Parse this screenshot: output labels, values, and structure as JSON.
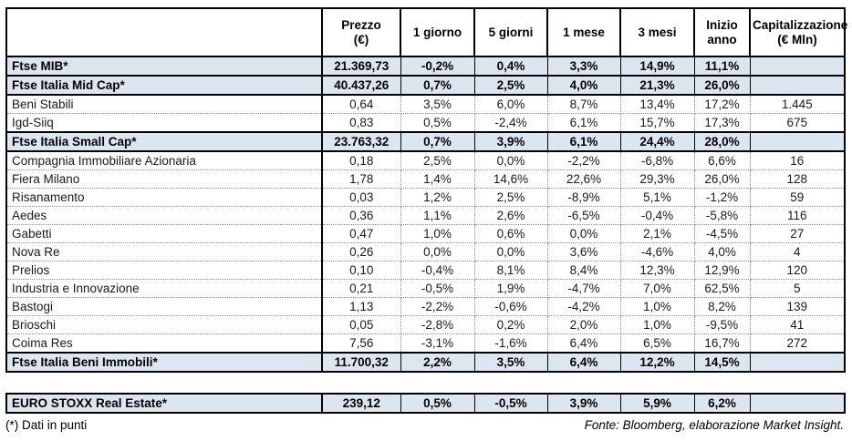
{
  "table": {
    "columns": [
      {
        "label": "Prezzo\n(€)"
      },
      {
        "label": "1 giorno"
      },
      {
        "label": "5 giorni"
      },
      {
        "label": "1 mese"
      },
      {
        "label": "3 mesi"
      },
      {
        "label": "Inizio anno"
      },
      {
        "label": "Capitalizzazione\n(€ Mln)"
      }
    ],
    "rows": [
      {
        "type": "index",
        "name": "Ftse MIB*",
        "values": [
          "21.369,73",
          "-0,2%",
          "0,4%",
          "3,3%",
          "14,9%",
          "11,1%",
          ""
        ]
      },
      {
        "type": "index",
        "name": "Ftse Italia Mid Cap*",
        "values": [
          "40.437,26",
          "0,7%",
          "2,5%",
          "4,0%",
          "21,3%",
          "26,0%",
          ""
        ]
      },
      {
        "type": "stock",
        "name": "Beni Stabili",
        "values": [
          "0,64",
          "3,5%",
          "6,0%",
          "8,7%",
          "13,4%",
          "17,2%",
          "1.445"
        ]
      },
      {
        "type": "stock",
        "name": "Igd-Siiq",
        "values": [
          "0,83",
          "0,5%",
          "-2,4%",
          "6,1%",
          "15,7%",
          "17,3%",
          "675"
        ]
      },
      {
        "type": "index",
        "name": "Ftse Italia Small Cap*",
        "values": [
          "23.763,32",
          "0,7%",
          "3,9%",
          "6,1%",
          "24,4%",
          "28,0%",
          ""
        ]
      },
      {
        "type": "stock",
        "name": "Compagnia Immobiliare Azionaria",
        "values": [
          "0,18",
          "2,5%",
          "0,0%",
          "-2,2%",
          "-6,8%",
          "6,6%",
          "16"
        ]
      },
      {
        "type": "stock",
        "name": "Fiera Milano",
        "values": [
          "1,78",
          "1,4%",
          "14,6%",
          "22,6%",
          "29,3%",
          "26,0%",
          "128"
        ]
      },
      {
        "type": "stock",
        "name": "Risanamento",
        "values": [
          "0,03",
          "1,2%",
          "2,5%",
          "-8,9%",
          "5,1%",
          "-1,2%",
          "59"
        ]
      },
      {
        "type": "stock",
        "name": "Aedes",
        "values": [
          "0,36",
          "1,1%",
          "2,6%",
          "-6,5%",
          "-0,4%",
          "-5,8%",
          "116"
        ]
      },
      {
        "type": "stock",
        "name": "Gabetti",
        "values": [
          "0,47",
          "1,0%",
          "0,6%",
          "0,0%",
          "2,1%",
          "-4,5%",
          "27"
        ]
      },
      {
        "type": "stock",
        "name": "Nova Re",
        "values": [
          "0,26",
          "0,0%",
          "0,0%",
          "3,6%",
          "-4,6%",
          "4,0%",
          "4"
        ]
      },
      {
        "type": "stock",
        "name": "Prelios",
        "values": [
          "0,10",
          "-0,4%",
          "8,1%",
          "8,4%",
          "12,3%",
          "12,9%",
          "120"
        ]
      },
      {
        "type": "stock",
        "name": "Industria e Innovazione",
        "values": [
          "0,21",
          "-0,5%",
          "1,9%",
          "-4,7%",
          "7,0%",
          "62,5%",
          "5"
        ]
      },
      {
        "type": "stock",
        "name": "Bastogi",
        "values": [
          "1,13",
          "-2,2%",
          "-0,6%",
          "-4,2%",
          "1,0%",
          "8,2%",
          "139"
        ]
      },
      {
        "type": "stock",
        "name": "Brioschi",
        "values": [
          "0,05",
          "-2,8%",
          "0,2%",
          "2,0%",
          "1,0%",
          "-9,5%",
          "41"
        ]
      },
      {
        "type": "stock",
        "name": "Coima Res",
        "values": [
          "7,56",
          "-3,1%",
          "-1,6%",
          "6,4%",
          "6,5%",
          "16,7%",
          "272"
        ]
      },
      {
        "type": "index",
        "name": "Ftse Italia Beni Immobili*",
        "values": [
          "11.700,32",
          "2,2%",
          "3,5%",
          "6,4%",
          "12,2%",
          "14,5%",
          ""
        ]
      }
    ]
  },
  "euro_table": {
    "rows": [
      {
        "type": "index",
        "name": "EURO STOXX Real Estate*",
        "values": [
          "239,12",
          "0,5%",
          "-0,5%",
          "3,9%",
          "5,9%",
          "6,2%",
          ""
        ]
      }
    ]
  },
  "footer": {
    "note": "(*) Dati in punti",
    "source": "Fonte: Bloomberg, elaborazione Market Insight."
  },
  "colors": {
    "index_row_bg": "#dce6f1",
    "border": "#000000",
    "dotted_separator": "#909090"
  }
}
